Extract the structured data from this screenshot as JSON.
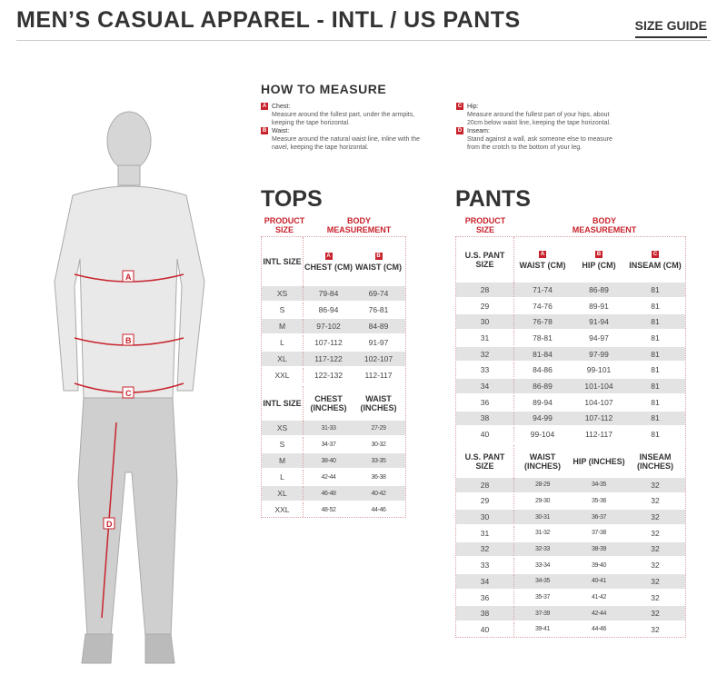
{
  "header": {
    "title": "MEN’S CASUAL APPAREL - INTL / US PANTS",
    "size_guide_link": "SIZE GUIDE"
  },
  "figure": {
    "labels": [
      "A",
      "B",
      "C",
      "D"
    ]
  },
  "how_to_measure": {
    "title": "HOW TO MEASURE",
    "items": [
      {
        "letter": "A",
        "term": "Chest:",
        "desc": "Measure around the fullest part, under the armpits, keeping the tape horizontal."
      },
      {
        "letter": "B",
        "term": "Waist:",
        "desc": "Measure around the natural waist line, inline with the navel, keeping the tape horizontal."
      },
      {
        "letter": "C",
        "term": "Hip:",
        "desc": "Measure around the fullest part of your hips, about 20cm below waist line, keeping the tape horizontal."
      },
      {
        "letter": "D",
        "term": "Inseam:",
        "desc": "Stand against a wall, ask someone else to measure from the crotch to the bottom of your leg."
      }
    ]
  },
  "accent_color": "#c8232c",
  "tops": {
    "title": "TOPS",
    "product_size": "PRODUCT SIZE",
    "body_measurement": "BODY MEASUREMENT",
    "cm": {
      "headers": [
        "INTL SIZE",
        "CHEST (CM)",
        "WAIST (CM)"
      ],
      "letters": [
        "A",
        "B"
      ],
      "rows": [
        [
          "XS",
          "79-84",
          "69-74"
        ],
        [
          "S",
          "86-94",
          "76-81"
        ],
        [
          "M",
          "97-102",
          "84-89"
        ],
        [
          "L",
          "107-112",
          "91-97"
        ],
        [
          "XL",
          "117-122",
          "102-107"
        ],
        [
          "XXL",
          "122-132",
          "112-117"
        ]
      ]
    },
    "inches": {
      "headers": [
        "INTL SIZE",
        "CHEST (INCHES)",
        "WAIST (INCHES)"
      ],
      "rows": [
        [
          "XS",
          "31-33",
          "27-29"
        ],
        [
          "S",
          "34-37",
          "30-32"
        ],
        [
          "M",
          "38-40",
          "33-35"
        ],
        [
          "L",
          "42-44",
          "36-38"
        ],
        [
          "XL",
          "46-48",
          "40-42"
        ],
        [
          "XXL",
          "48-52",
          "44-46"
        ]
      ]
    }
  },
  "pants": {
    "title": "PANTS",
    "product_size": "PRODUCT SIZE",
    "body_measurement": "BODY MEASUREMENT",
    "cm": {
      "headers": [
        "U.S. PANT SIZE",
        "WAIST (CM)",
        "HIP (CM)",
        "INSEAM (CM)"
      ],
      "letters": [
        "A",
        "B",
        "C"
      ],
      "rows": [
        [
          "28",
          "71-74",
          "86-89",
          "81"
        ],
        [
          "29",
          "74-76",
          "89-91",
          "81"
        ],
        [
          "30",
          "76-78",
          "91-94",
          "81"
        ],
        [
          "31",
          "78-81",
          "94-97",
          "81"
        ],
        [
          "32",
          "81-84",
          "97-99",
          "81"
        ],
        [
          "33",
          "84-86",
          "99-101",
          "81"
        ],
        [
          "34",
          "86-89",
          "101-104",
          "81"
        ],
        [
          "36",
          "89-94",
          "104-107",
          "81"
        ],
        [
          "38",
          "94-99",
          "107-112",
          "81"
        ],
        [
          "40",
          "99-104",
          "112-117",
          "81"
        ]
      ]
    },
    "inches": {
      "headers": [
        "U.S. PANT SIZE",
        "WAIST (INCHES)",
        "HIP (INCHES)",
        "INSEAM (INCHES)"
      ],
      "rows": [
        [
          "28",
          "28-29",
          "34-35",
          "32"
        ],
        [
          "29",
          "29-30",
          "35-36",
          "32"
        ],
        [
          "30",
          "30-31",
          "36-37",
          "32"
        ],
        [
          "31",
          "31-32",
          "37-38",
          "32"
        ],
        [
          "32",
          "32-33",
          "38-39",
          "32"
        ],
        [
          "33",
          "33-34",
          "39-40",
          "32"
        ],
        [
          "34",
          "34-35",
          "40-41",
          "32"
        ],
        [
          "36",
          "35-37",
          "41-42",
          "32"
        ],
        [
          "38",
          "37-39",
          "42-44",
          "32"
        ],
        [
          "40",
          "39-41",
          "44-46",
          "32"
        ]
      ]
    }
  }
}
